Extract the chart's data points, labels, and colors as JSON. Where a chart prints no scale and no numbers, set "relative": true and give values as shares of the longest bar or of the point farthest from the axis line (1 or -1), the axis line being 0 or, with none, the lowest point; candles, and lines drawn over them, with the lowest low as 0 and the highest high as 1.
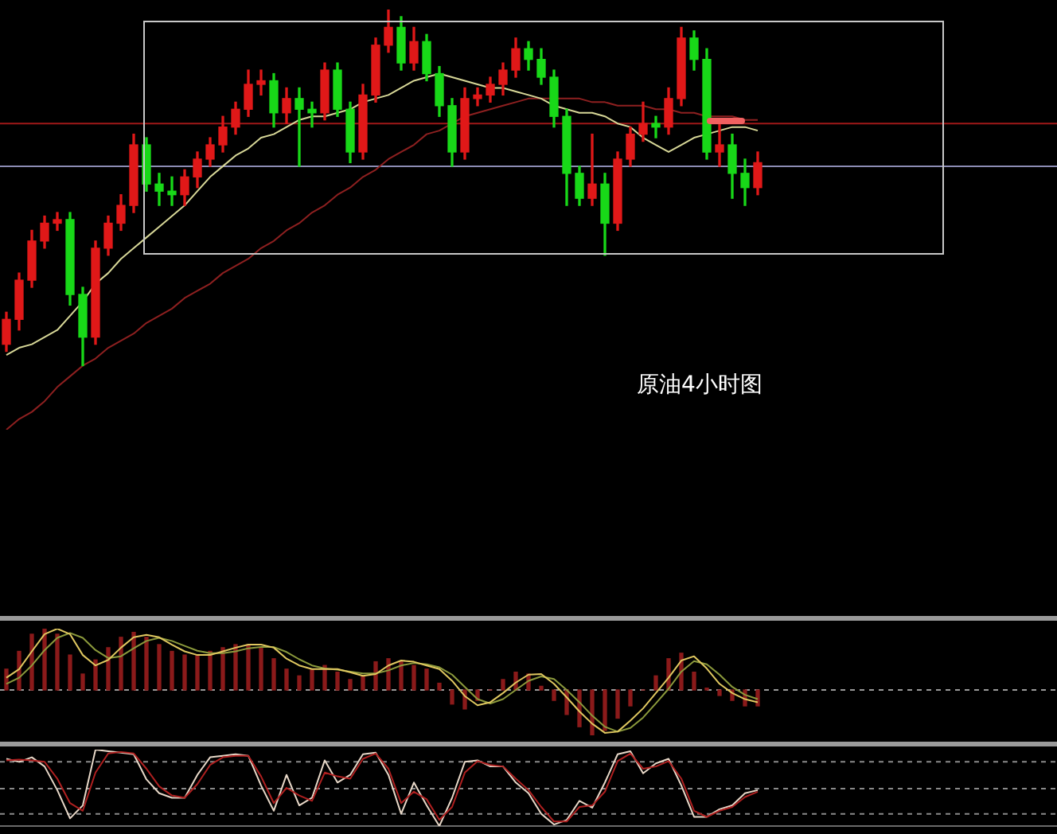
{
  "chart_data": [
    {
      "type": "candlestick",
      "title": "原油4小时图",
      "relative": true,
      "categories": [
        null,
        null,
        null,
        null,
        null,
        null,
        null,
        null,
        null,
        null,
        null,
        null,
        null,
        null,
        null,
        null,
        null,
        null,
        null,
        null,
        null,
        null,
        null,
        null,
        null,
        null,
        null,
        null,
        null,
        null,
        null,
        null,
        null,
        null,
        null,
        null,
        null,
        null,
        null,
        null,
        null,
        null,
        null,
        null,
        null,
        null,
        null,
        null,
        null,
        null,
        null,
        null,
        null,
        null,
        null,
        null,
        null,
        null,
        null,
        null
      ],
      "ohlc": [
        [
          0.06,
          0.15,
          0.04,
          0.13
        ],
        [
          0.13,
          0.26,
          0.1,
          0.24
        ],
        [
          0.24,
          0.38,
          0.22,
          0.35
        ],
        [
          0.35,
          0.42,
          0.33,
          0.4
        ],
        [
          0.4,
          0.43,
          0.38,
          0.41
        ],
        [
          0.41,
          0.43,
          0.17,
          0.2
        ],
        [
          0.2,
          0.22,
          0,
          0.08
        ],
        [
          0.08,
          0.35,
          0.06,
          0.33
        ],
        [
          0.33,
          0.42,
          0.31,
          0.4
        ],
        [
          0.4,
          0.48,
          0.38,
          0.45
        ],
        [
          0.45,
          0.65,
          0.43,
          0.62
        ],
        [
          0.62,
          0.64,
          0.49,
          0.51
        ],
        [
          0.51,
          0.54,
          0.45,
          0.49
        ],
        [
          0.49,
          0.53,
          0.45,
          0.48
        ],
        [
          0.48,
          0.55,
          0.45,
          0.53
        ],
        [
          0.53,
          0.6,
          0.5,
          0.58
        ],
        [
          0.58,
          0.64,
          0.56,
          0.62
        ],
        [
          0.62,
          0.7,
          0.6,
          0.67
        ],
        [
          0.67,
          0.74,
          0.65,
          0.72
        ],
        [
          0.72,
          0.83,
          0.7,
          0.79
        ],
        [
          0.79,
          0.83,
          0.76,
          0.8
        ],
        [
          0.8,
          0.82,
          0.67,
          0.71
        ],
        [
          0.71,
          0.78,
          0.68,
          0.75
        ],
        [
          0.75,
          0.78,
          0.56,
          0.72
        ],
        [
          0.72,
          0.74,
          0.67,
          0.71
        ],
        [
          0.71,
          0.85,
          0.69,
          0.83
        ],
        [
          0.83,
          0.85,
          0.7,
          0.72
        ],
        [
          0.72,
          0.74,
          0.57,
          0.6
        ],
        [
          0.6,
          0.79,
          0.58,
          0.76
        ],
        [
          0.76,
          0.92,
          0.74,
          0.9
        ],
        [
          0.9,
          1,
          0.88,
          0.95
        ],
        [
          0.95,
          0.98,
          0.83,
          0.85
        ],
        [
          0.85,
          0.95,
          0.83,
          0.91
        ],
        [
          0.91,
          0.93,
          0.8,
          0.82
        ],
        [
          0.82,
          0.84,
          0.7,
          0.73
        ],
        [
          0.73,
          0.75,
          0.56,
          0.6
        ],
        [
          0.6,
          0.78,
          0.58,
          0.75
        ],
        [
          0.75,
          0.78,
          0.73,
          0.76
        ],
        [
          0.76,
          0.81,
          0.74,
          0.79
        ],
        [
          0.79,
          0.85,
          0.76,
          0.83
        ],
        [
          0.83,
          0.92,
          0.81,
          0.89
        ],
        [
          0.89,
          0.91,
          0.83,
          0.86
        ],
        [
          0.86,
          0.89,
          0.79,
          0.81
        ],
        [
          0.81,
          0.83,
          0.67,
          0.7
        ],
        [
          0.7,
          0.72,
          0.45,
          0.54
        ],
        [
          0.54,
          0.56,
          0.45,
          0.47
        ],
        [
          0.47,
          0.65,
          0.45,
          0.51
        ],
        [
          0.51,
          0.54,
          0.31,
          0.4
        ],
        [
          0.4,
          0.6,
          0.38,
          0.58
        ],
        [
          0.58,
          0.67,
          0.56,
          0.65
        ],
        [
          0.65,
          0.74,
          0.63,
          0.68
        ],
        [
          0.68,
          0.7,
          0.64,
          0.67
        ],
        [
          0.67,
          0.78,
          0.65,
          0.75
        ],
        [
          0.75,
          0.95,
          0.73,
          0.92
        ],
        [
          0.92,
          0.94,
          0.83,
          0.86
        ],
        [
          0.86,
          0.89,
          0.58,
          0.6
        ],
        [
          0.6,
          0.69,
          0.56,
          0.62
        ],
        [
          0.62,
          0.65,
          0.47,
          0.54
        ],
        [
          0.54,
          0.58,
          0.45,
          0.5
        ],
        [
          0.5,
          0.6,
          0.48,
          0.57
        ]
      ],
      "colors": [
        "#e01818",
        "#e01818",
        "#e01818",
        "#e01818",
        "#e01818",
        "#18d818",
        "#18d818",
        "#e01818",
        "#e01818",
        "#e01818",
        "#e01818",
        "#18d818",
        "#18d818",
        "#18d818",
        "#e01818",
        "#e01818",
        "#e01818",
        "#e01818",
        "#e01818",
        "#e01818",
        "#e01818",
        "#18d818",
        "#e01818",
        "#18d818",
        "#18d818",
        "#e01818",
        "#18d818",
        "#18d818",
        "#e01818",
        "#e01818",
        "#e01818",
        "#18d818",
        "#e01818",
        "#18d818",
        "#18d818",
        "#18d818",
        "#e01818",
        "#e01818",
        "#e01818",
        "#e01818",
        "#e01818",
        "#18d818",
        "#18d818",
        "#18d818",
        "#18d818",
        "#18d818",
        "#e01818",
        "#18d818",
        "#e01818",
        "#e01818",
        "#e01818",
        "#18d818",
        "#e01818",
        "#e01818",
        "#18d818",
        "#18d818",
        "#e01818",
        "#18d818",
        "#18d818",
        "#e01818"
      ],
      "series": [
        {
          "type": "line",
          "color": "#d8d898",
          "values": [
            0.03,
            0.05,
            0.06,
            0.08,
            0.1,
            0.14,
            0.18,
            0.23,
            0.26,
            0.3,
            0.33,
            0.36,
            0.39,
            0.42,
            0.45,
            0.49,
            0.53,
            0.56,
            0.59,
            0.61,
            0.64,
            0.65,
            0.67,
            0.69,
            0.7,
            0.7,
            0.71,
            0.72,
            0.74,
            0.75,
            0.76,
            0.78,
            0.8,
            0.81,
            0.82,
            0.81,
            0.8,
            0.79,
            0.78,
            0.78,
            0.77,
            0.76,
            0.75,
            0.73,
            0.72,
            0.71,
            0.71,
            0.7,
            0.68,
            0.67,
            0.64,
            0.62,
            0.6,
            0.62,
            0.64,
            0.65,
            0.66,
            0.67,
            0.67,
            0.66
          ]
        },
        {
          "type": "line",
          "color": "#8e2020",
          "values": [
            -0.18,
            -0.15,
            -0.13,
            -0.1,
            -0.06,
            -0.03,
            0,
            0.02,
            0.05,
            0.07,
            0.09,
            0.12,
            0.14,
            0.16,
            0.19,
            0.21,
            0.23,
            0.26,
            0.28,
            0.3,
            0.33,
            0.35,
            0.38,
            0.4,
            0.43,
            0.45,
            0.48,
            0.5,
            0.53,
            0.55,
            0.58,
            0.6,
            0.62,
            0.65,
            0.66,
            0.68,
            0.7,
            0.71,
            0.72,
            0.73,
            0.74,
            0.75,
            0.75,
            0.75,
            0.75,
            0.75,
            0.74,
            0.74,
            0.73,
            0.73,
            0.73,
            0.72,
            0.72,
            0.71,
            0.71,
            0.7,
            0.7,
            0.7,
            0.69,
            0.69
          ]
        }
      ],
      "ref_lines": [
        {
          "axis": "y",
          "value": 0.68,
          "color": "#a01818"
        },
        {
          "axis": "y",
          "value": 0.56,
          "color": "#8c8cb4"
        }
      ]
    },
    {
      "type": "bar",
      "relative": true,
      "categories": [
        null,
        null,
        null,
        null,
        null,
        null,
        null,
        null,
        null,
        null,
        null,
        null,
        null,
        null,
        null,
        null,
        null,
        null,
        null,
        null,
        null,
        null,
        null,
        null,
        null,
        null,
        null,
        null,
        null,
        null,
        null,
        null,
        null,
        null,
        null,
        null,
        null,
        null,
        null,
        null,
        null,
        null,
        null,
        null,
        null,
        null,
        null,
        null,
        null,
        null,
        null,
        null,
        null,
        null,
        null,
        null,
        null,
        null,
        null,
        null
      ],
      "series": [
        {
          "type": "bar",
          "color": "#8b1a1a",
          "values": [
            0.34,
            0.63,
            0.91,
            1,
            0.91,
            0.57,
            0.26,
            0.49,
            0.69,
            0.86,
            0.94,
            0.86,
            0.74,
            0.63,
            0.57,
            0.57,
            0.63,
            0.69,
            0.74,
            0.74,
            0.69,
            0.51,
            0.34,
            0.23,
            0.34,
            0.4,
            0.29,
            0.17,
            0.23,
            0.46,
            0.51,
            0.46,
            0.4,
            0.34,
            0.11,
            -0.23,
            -0.31,
            -0.17,
            0,
            0.17,
            0.29,
            0.26,
            0.06,
            -0.17,
            -0.4,
            -0.6,
            -0.74,
            -0.66,
            -0.46,
            -0.26,
            0,
            0.23,
            0.51,
            0.6,
            0.29,
            0.03,
            -0.09,
            -0.17,
            -0.26,
            -0.26
          ]
        },
        {
          "type": "line",
          "color": "#e0c860",
          "values": [
            0.2,
            0.34,
            0.63,
            0.91,
            1,
            0.91,
            0.57,
            0.4,
            0.49,
            0.69,
            0.86,
            0.9,
            0.86,
            0.74,
            0.63,
            0.57,
            0.57,
            0.63,
            0.69,
            0.74,
            0.74,
            0.69,
            0.51,
            0.4,
            0.34,
            0.34,
            0.34,
            0.29,
            0.23,
            0.26,
            0.4,
            0.48,
            0.46,
            0.4,
            0.34,
            0.15,
            -0.1,
            -0.25,
            -0.2,
            -0.05,
            0.12,
            0.25,
            0.26,
            0.1,
            -0.12,
            -0.35,
            -0.55,
            -0.7,
            -0.68,
            -0.5,
            -0.3,
            -0.05,
            0.2,
            0.48,
            0.55,
            0.35,
            0.1,
            -0.05,
            -0.15,
            -0.2
          ]
        },
        {
          "type": "line",
          "color": "#8c9a3c",
          "values": [
            0.1,
            0.2,
            0.4,
            0.65,
            0.85,
            0.93,
            0.85,
            0.65,
            0.52,
            0.55,
            0.68,
            0.8,
            0.85,
            0.8,
            0.72,
            0.64,
            0.6,
            0.6,
            0.63,
            0.68,
            0.7,
            0.7,
            0.62,
            0.5,
            0.4,
            0.35,
            0.33,
            0.3,
            0.27,
            0.27,
            0.32,
            0.4,
            0.44,
            0.42,
            0.37,
            0.25,
            0.05,
            -0.15,
            -0.22,
            -0.15,
            0,
            0.15,
            0.22,
            0.18,
            0,
            -0.2,
            -0.42,
            -0.6,
            -0.68,
            -0.62,
            -0.45,
            -0.22,
            0.02,
            0.3,
            0.47,
            0.42,
            0.25,
            0.05,
            -0.08,
            -0.15
          ]
        }
      ],
      "ref_lines": [
        {
          "axis": "y",
          "value": 0,
          "color": "#9a9a9a",
          "line_style": "dashed"
        }
      ]
    },
    {
      "type": "line",
      "relative": true,
      "categories": [
        null,
        null,
        null,
        null,
        null,
        null,
        null,
        null,
        null,
        null,
        null,
        null,
        null,
        null,
        null,
        null,
        null,
        null,
        null,
        null,
        null,
        null,
        null,
        null,
        null,
        null,
        null,
        null,
        null,
        null,
        null,
        null,
        null,
        null,
        null,
        null,
        null,
        null,
        null,
        null,
        null,
        null,
        null,
        null,
        null,
        null,
        null,
        null,
        null,
        null,
        null,
        null,
        null,
        null,
        null,
        null,
        null,
        null,
        null,
        null
      ],
      "series": [
        {
          "type": "line",
          "color": "#b02020",
          "values": [
            0.86,
            0.87,
            0.86,
            0.84,
            0.62,
            0.3,
            0.2,
            0.7,
            0.95,
            0.97,
            0.95,
            0.75,
            0.52,
            0.4,
            0.37,
            0.55,
            0.8,
            0.9,
            0.92,
            0.92,
            0.65,
            0.3,
            0.5,
            0.4,
            0.33,
            0.7,
            0.65,
            0.62,
            0.88,
            0.95,
            0.75,
            0.3,
            0.45,
            0.35,
            0.08,
            0.25,
            0.7,
            0.85,
            0.8,
            0.78,
            0.62,
            0.47,
            0.25,
            0.06,
            0.06,
            0.25,
            0.27,
            0.45,
            0.85,
            0.95,
            0.75,
            0.78,
            0.85,
            0.62,
            0.2,
            0.12,
            0.2,
            0.25,
            0.38,
            0.45
          ]
        },
        {
          "type": "line",
          "color": "#e8d8c8",
          "values": [
            0.88,
            0.84,
            0.9,
            0.78,
            0.47,
            0.1,
            0.27,
            1,
            0.98,
            0.96,
            0.94,
            0.61,
            0.43,
            0.37,
            0.37,
            0.67,
            0.9,
            0.92,
            0.94,
            0.92,
            0.53,
            0.2,
            0.67,
            0.27,
            0.37,
            0.86,
            0.57,
            0.67,
            0.94,
            0.96,
            0.67,
            0.16,
            0.57,
            0.27,
            0,
            0.37,
            0.84,
            0.86,
            0.78,
            0.78,
            0.57,
            0.43,
            0.16,
            0.02,
            0.08,
            0.33,
            0.24,
            0.57,
            0.94,
            0.98,
            0.69,
            0.82,
            0.88,
            0.53,
            0.12,
            0.12,
            0.22,
            0.27,
            0.43,
            0.47
          ]
        }
      ],
      "ref_lines": [
        {
          "axis": "y",
          "value": 0.84,
          "color": "#8a8a8a",
          "line_style": "dashed"
        },
        {
          "axis": "y",
          "value": 0.49,
          "color": "#8a8a8a",
          "line_style": "dashed"
        },
        {
          "axis": "y",
          "value": 0.16,
          "color": "#8a8a8a",
          "line_style": "dashed"
        }
      ]
    }
  ]
}
